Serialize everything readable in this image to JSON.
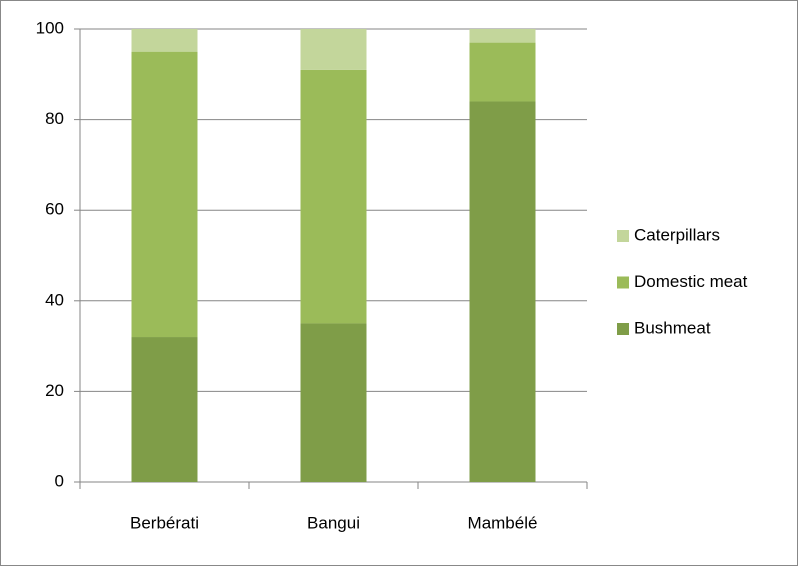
{
  "chart_data": {
    "type": "stacked_bar",
    "categories": [
      "Berbérati",
      "Bangui",
      "Mambélé"
    ],
    "series": [
      {
        "name": "Bushmeat",
        "color": "#7f9d48",
        "values": [
          32,
          35,
          84
        ]
      },
      {
        "name": "Domestic meat",
        "color": "#9bbb59",
        "values": [
          63,
          56,
          13
        ]
      },
      {
        "name": "Caterpillars",
        "color": "#c3d69b",
        "values": [
          5,
          9,
          3
        ]
      }
    ],
    "ylim": [
      0,
      100
    ],
    "yticks": [
      0,
      20,
      40,
      60,
      80,
      100
    ],
    "grid": true,
    "legend": "right"
  }
}
